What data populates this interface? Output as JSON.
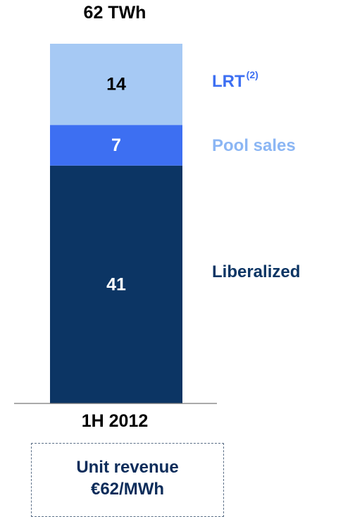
{
  "chart_data": {
    "type": "bar",
    "stacked": true,
    "title": "62 TWh",
    "categories": [
      "1H 2012"
    ],
    "unit": "TWh",
    "total": 62,
    "ylim": [
      0,
      62
    ],
    "grid": false,
    "series": [
      {
        "name": "Liberalized",
        "values": [
          41
        ],
        "color": "#0c3564",
        "label_color": "#ffffff",
        "legend_color": "#0c3564"
      },
      {
        "name": "Pool sales",
        "values": [
          7
        ],
        "color": "#3d6ff2",
        "label_color": "#ffffff",
        "legend_color": "#8bb6f4"
      },
      {
        "name": "LRT",
        "footnote": "(2)",
        "values": [
          14
        ],
        "color": "#a6c9f4",
        "label_color": "#000000",
        "legend_color": "#3d6ff2"
      }
    ]
  },
  "unit_revenue": {
    "line1": "Unit revenue",
    "line2": "€62/MWh"
  }
}
